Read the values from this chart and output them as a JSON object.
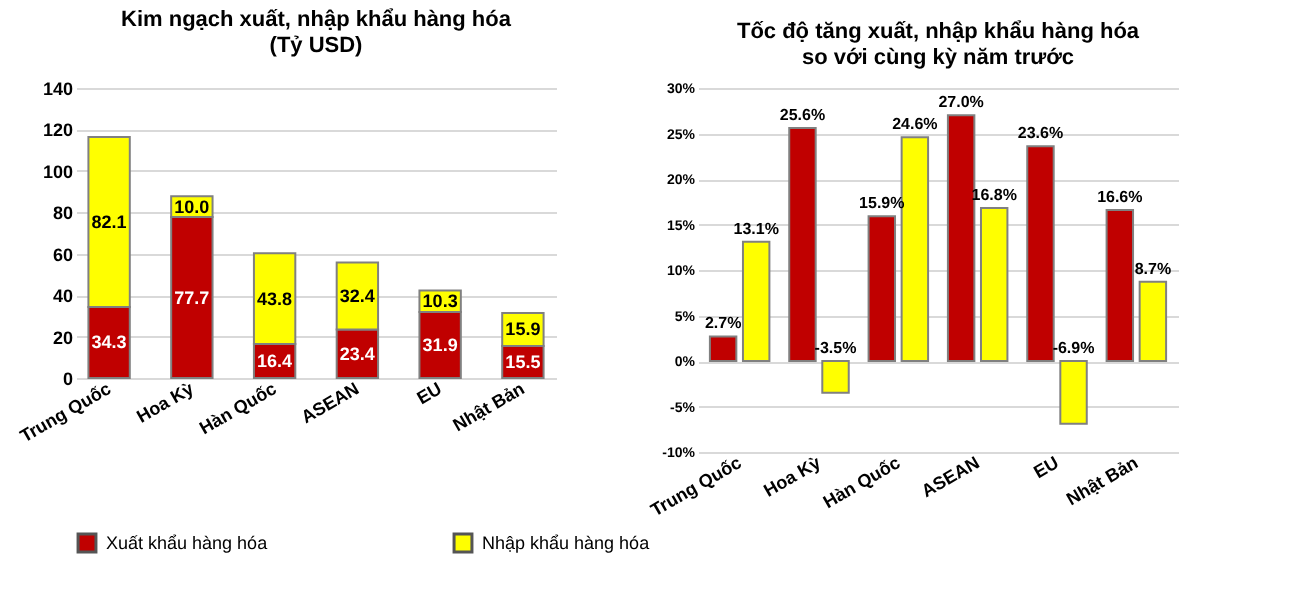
{
  "chart_data": [
    {
      "type": "bar",
      "stacked": true,
      "title": "Kim ngạch xuất, nhập khẩu hàng hóa\n(Tỷ USD)",
      "categories": [
        "Trung Quốc",
        "Hoa Kỳ",
        "Hàn Quốc",
        "ASEAN",
        "EU",
        "Nhật Bản"
      ],
      "ylim": [
        0,
        140
      ],
      "yticks": [
        0,
        20,
        40,
        60,
        80,
        100,
        120,
        140
      ],
      "grid": "y",
      "legend": "bottom",
      "series": [
        {
          "name": "Xuất khẩu hàng hóa",
          "color": "#c00000",
          "values": [
            34.3,
            77.7,
            16.4,
            23.4,
            31.9,
            15.5
          ],
          "value_labels": [
            "34.3",
            "77.7",
            "16.4",
            "23.4",
            "31.9",
            "15.5"
          ]
        },
        {
          "name": "Nhập khẩu hàng hóa",
          "color": "#ffff00",
          "values": [
            82.1,
            10.0,
            43.8,
            32.4,
            10.3,
            15.9
          ],
          "value_labels": [
            "82.1",
            "10.0",
            "43.8",
            "32.4",
            "10.3",
            "15.9"
          ]
        }
      ]
    },
    {
      "type": "bar",
      "title": "Tốc độ tăng xuất, nhập khẩu hàng hóa\nso với cùng kỳ năm trước",
      "categories": [
        "Trung Quốc",
        "Hoa Kỳ",
        "Hàn Quốc",
        "ASEAN",
        "EU",
        "Nhật Bản"
      ],
      "ylim": [
        -10,
        30
      ],
      "yticks": [
        {
          "value": -10,
          "label": "-10%"
        },
        {
          "value": -5,
          "label": "-5%"
        },
        {
          "value": 0,
          "label": "0%"
        },
        {
          "value": 5,
          "label": "5%"
        },
        {
          "value": 10,
          "label": "10%"
        },
        {
          "value": 15,
          "label": "15%"
        },
        {
          "value": 20,
          "label": "20%"
        },
        {
          "value": 25,
          "label": "25%"
        },
        {
          "value": 30,
          "label": "30%"
        }
      ],
      "grid": "y",
      "legend": "bottom",
      "series": [
        {
          "name": "Xuất khẩu hàng hóa",
          "color": "#c00000",
          "values": [
            2.7,
            25.6,
            15.9,
            27.0,
            23.6,
            16.6
          ],
          "value_labels": [
            "2.7%",
            "25.6%",
            "15.9%",
            "27.0%",
            "23.6%",
            "16.6%"
          ]
        },
        {
          "name": "Nhập khẩu hàng hóa",
          "color": "#ffff00",
          "values": [
            13.1,
            -3.5,
            24.6,
            16.8,
            -6.9,
            8.7
          ],
          "value_labels": [
            "13.1%",
            "-3.5%",
            "24.6%",
            "16.8%",
            "-6.9%",
            "8.7%"
          ]
        }
      ]
    }
  ]
}
